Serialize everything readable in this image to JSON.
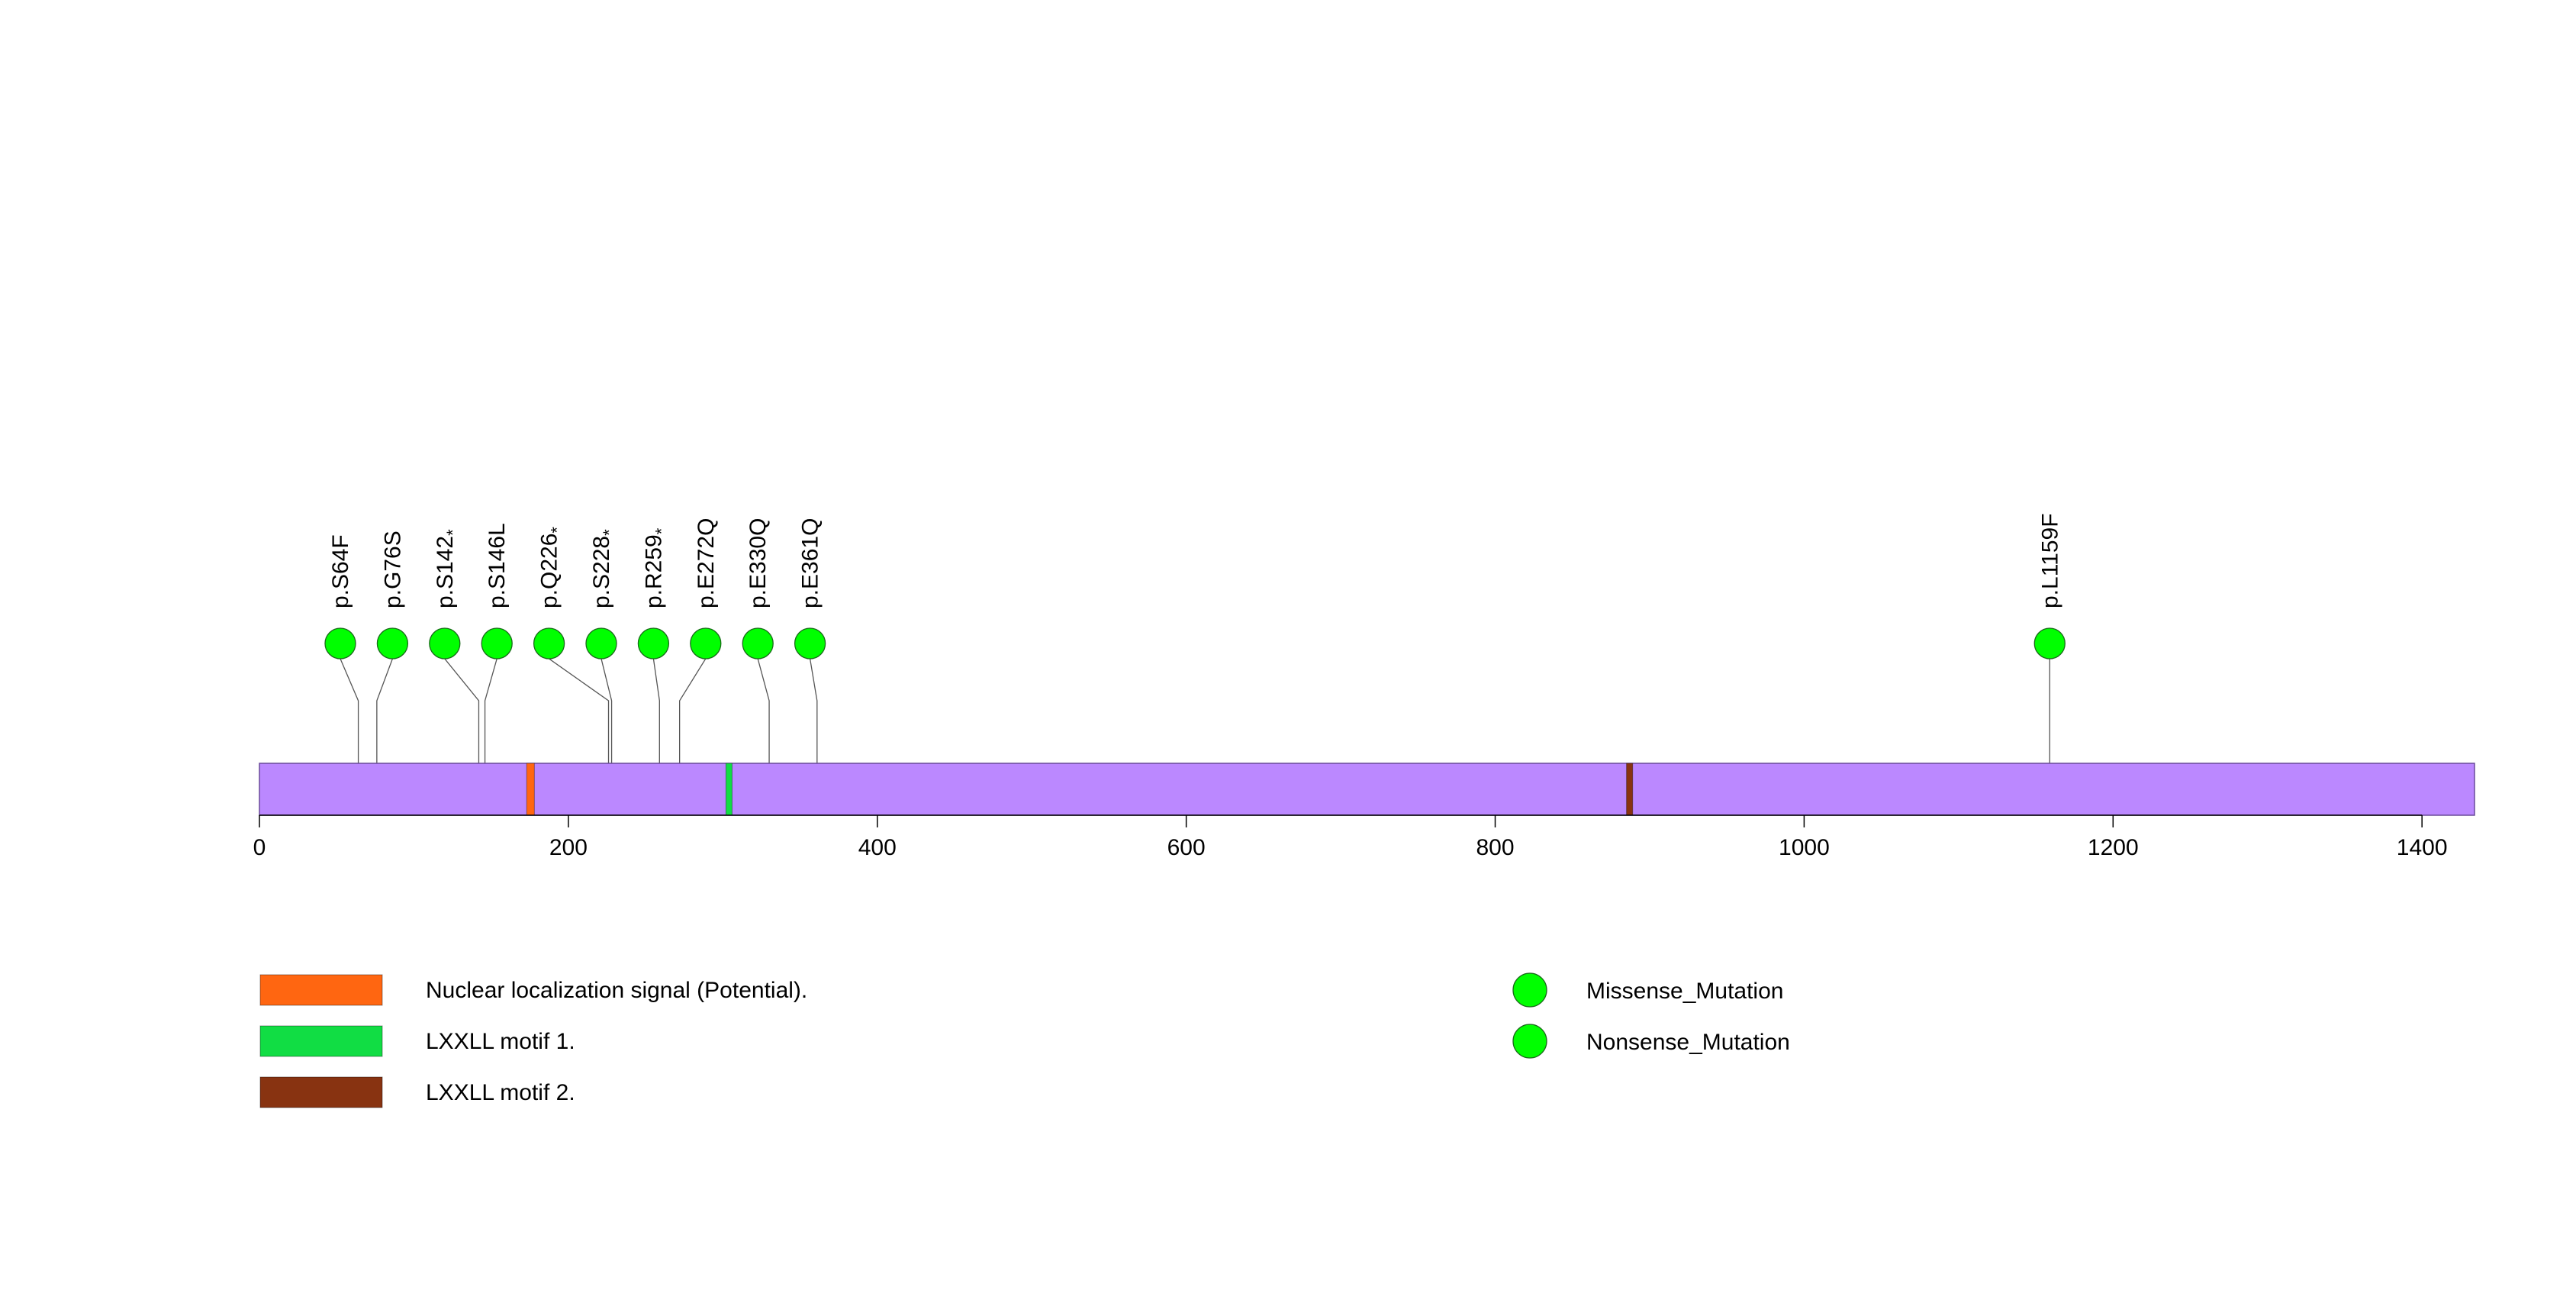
{
  "chart_data": {
    "type": "lollipop",
    "protein_length": 1434,
    "x_axis": {
      "min": 0,
      "max": 1434,
      "ticks": [
        {
          "value": 0,
          "label": "0"
        },
        {
          "value": 200,
          "label": "200"
        },
        {
          "value": 400,
          "label": "400"
        },
        {
          "value": 600,
          "label": "600"
        },
        {
          "value": 800,
          "label": "800"
        },
        {
          "value": 1000,
          "label": "1000"
        },
        {
          "value": 1200,
          "label": "1200"
        },
        {
          "value": 1400,
          "label": "1400"
        }
      ]
    },
    "backbone_color": "#BB88FF",
    "domains": [
      {
        "name": "Nuclear localization signal (Potential).",
        "start": 173,
        "end": 178,
        "color": "#FF6611"
      },
      {
        "name": "LXXLL motif 1.",
        "start": 302,
        "end": 306,
        "color": "#11DD44"
      },
      {
        "name": "LXXLL motif 2.",
        "start": 885,
        "end": 889,
        "color": "#883311"
      }
    ],
    "mutations": [
      {
        "position": 64,
        "label": "p.S64F",
        "type": "Missense_Mutation"
      },
      {
        "position": 76,
        "label": "p.G76S",
        "type": "Missense_Mutation"
      },
      {
        "position": 142,
        "label": "p.S142",
        "suffix": "*",
        "type": "Nonsense_Mutation"
      },
      {
        "position": 146,
        "label": "p.S146L",
        "type": "Missense_Mutation"
      },
      {
        "position": 226,
        "label": "p.Q226",
        "suffix": "*",
        "type": "Nonsense_Mutation"
      },
      {
        "position": 228,
        "label": "p.S228",
        "suffix": "*",
        "type": "Nonsense_Mutation"
      },
      {
        "position": 259,
        "label": "p.R259",
        "suffix": "*",
        "type": "Nonsense_Mutation"
      },
      {
        "position": 272,
        "label": "p.E272Q",
        "type": "Missense_Mutation"
      },
      {
        "position": 330,
        "label": "p.E330Q",
        "type": "Missense_Mutation"
      },
      {
        "position": 361,
        "label": "p.E361Q",
        "type": "Missense_Mutation"
      },
      {
        "position": 1159,
        "label": "p.L1159F",
        "type": "Missense_Mutation"
      }
    ],
    "mutation_colors": {
      "Missense_Mutation": "#00FF00",
      "Nonsense_Mutation": "#00FF00"
    },
    "legend": {
      "domains": [
        {
          "label": "Nuclear localization signal (Potential).",
          "color": "#FF6611"
        },
        {
          "label": "LXXLL motif 1.",
          "color": "#11DD44"
        },
        {
          "label": "LXXLL motif 2.",
          "color": "#883311"
        }
      ],
      "mutation_types": [
        {
          "label": "Missense_Mutation",
          "color": "#00FF00"
        },
        {
          "label": "Nonsense_Mutation",
          "color": "#00FF00"
        }
      ]
    }
  }
}
